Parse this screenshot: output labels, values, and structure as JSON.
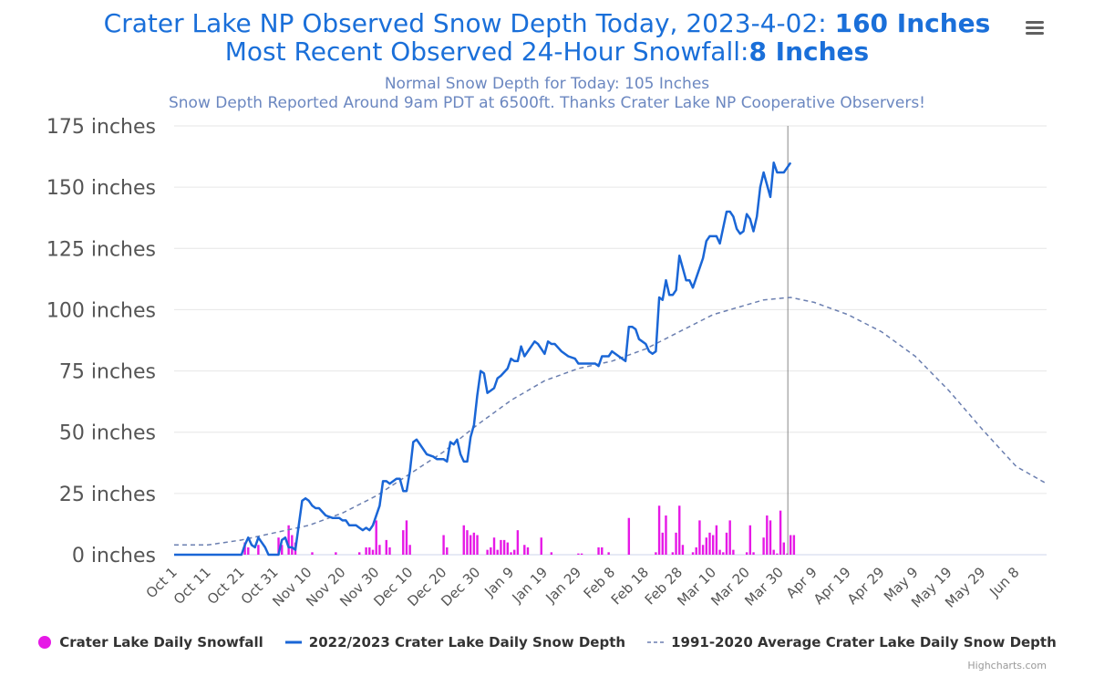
{
  "header": {
    "title_line1_prefix": "Crater Lake NP Observed Snow Depth Today, 2023-4-02: ",
    "title_line1_value": "160 Inches",
    "title_line2_prefix": "Most Recent Observed 24-Hour Snowfall:",
    "title_line2_value": "8 Inches",
    "subtitle_line1": "Normal Snow Depth for Today: 105 Inches",
    "subtitle_line2": "Snow Depth Reported Around 9am PDT at 6500ft. Thanks Crater Lake NP Cooperative Observers!"
  },
  "menu": {
    "icon": "hamburger-menu-icon"
  },
  "credits": "Highcharts.com",
  "colors": {
    "title": "#1a6fd9",
    "subtitle": "#6b87c0",
    "snowfall": "#e619e6",
    "depth": "#1a66d6",
    "average": "#6b7fb0",
    "grid": "#e6e6e6",
    "today_line": "#888888"
  },
  "chart_data": {
    "type": "line",
    "title": "Crater Lake NP Observed Snow Depth Today, 2023-4-02: 160 Inches",
    "subtitle": "Normal Snow Depth for Today: 105 Inches",
    "xlabel": "",
    "ylabel": "",
    "x_unit": "days since Oct 1, 2022",
    "xlim": [
      0,
      259
    ],
    "ylim": [
      0,
      175
    ],
    "y_ticks": [
      0,
      25,
      50,
      75,
      100,
      125,
      150,
      175
    ],
    "y_tick_labels": [
      "0 inches",
      "25 inches",
      "50 inches",
      "75 inches",
      "100 inches",
      "125 inches",
      "150 inches",
      "175 inches"
    ],
    "x_ticks": [
      0,
      10,
      20,
      30,
      40,
      50,
      60,
      70,
      80,
      90,
      100,
      110,
      120,
      130,
      140,
      150,
      160,
      170,
      180,
      190,
      200,
      210,
      220,
      230,
      240,
      250
    ],
    "x_tick_labels": [
      "Oct 1",
      "Oct 11",
      "Oct 21",
      "Oct 31",
      "Nov 10",
      "Nov 20",
      "Nov 30",
      "Dec 10",
      "Dec 20",
      "Dec 30",
      "Jan 9",
      "Jan 19",
      "Jan 29",
      "Feb 8",
      "Feb 18",
      "Feb 28",
      "Mar 10",
      "Mar 20",
      "Mar 30",
      "Apr 9",
      "Apr 19",
      "Apr 29",
      "May 9",
      "May 19",
      "May 29",
      "Jun 8"
    ],
    "grid": true,
    "legend_position": "bottom-center",
    "today_marker_day": 183,
    "series": [
      {
        "name": "Crater Lake Daily Snowfall",
        "type": "bar",
        "points": [
          [
            21,
            5
          ],
          [
            22,
            3
          ],
          [
            25,
            4
          ],
          [
            31,
            7
          ],
          [
            32,
            4
          ],
          [
            34,
            12
          ],
          [
            35,
            8
          ],
          [
            36,
            5
          ],
          [
            41,
            1
          ],
          [
            48,
            1
          ],
          [
            55,
            1
          ],
          [
            57,
            3
          ],
          [
            58,
            3
          ],
          [
            59,
            2
          ],
          [
            60,
            14
          ],
          [
            61,
            4
          ],
          [
            63,
            6
          ],
          [
            64,
            3
          ],
          [
            68,
            10
          ],
          [
            69,
            14
          ],
          [
            70,
            4
          ],
          [
            80,
            8
          ],
          [
            81,
            3
          ],
          [
            86,
            12
          ],
          [
            87,
            10
          ],
          [
            88,
            8
          ],
          [
            89,
            9
          ],
          [
            90,
            8
          ],
          [
            93,
            2
          ],
          [
            94,
            3
          ],
          [
            95,
            7
          ],
          [
            96,
            2
          ],
          [
            97,
            6
          ],
          [
            98,
            6
          ],
          [
            99,
            5
          ],
          [
            100,
            1
          ],
          [
            101,
            2
          ],
          [
            102,
            10
          ],
          [
            104,
            4
          ],
          [
            105,
            3
          ],
          [
            109,
            7
          ],
          [
            112,
            1
          ],
          [
            120,
            0.5
          ],
          [
            121,
            0.5
          ],
          [
            126,
            3
          ],
          [
            127,
            3
          ],
          [
            129,
            1
          ],
          [
            135,
            15
          ],
          [
            143,
            1
          ],
          [
            144,
            20
          ],
          [
            145,
            9
          ],
          [
            146,
            16
          ],
          [
            148,
            1
          ],
          [
            149,
            9
          ],
          [
            150,
            20
          ],
          [
            151,
            4
          ],
          [
            154,
            1
          ],
          [
            155,
            3
          ],
          [
            156,
            14
          ],
          [
            157,
            4
          ],
          [
            158,
            7
          ],
          [
            159,
            9
          ],
          [
            160,
            8
          ],
          [
            161,
            12
          ],
          [
            162,
            2
          ],
          [
            163,
            1
          ],
          [
            164,
            9
          ],
          [
            165,
            14
          ],
          [
            166,
            2
          ],
          [
            170,
            1
          ],
          [
            171,
            12
          ],
          [
            172,
            1
          ],
          [
            175,
            7
          ],
          [
            176,
            16
          ],
          [
            177,
            14
          ],
          [
            178,
            2
          ],
          [
            179,
            0.5
          ],
          [
            180,
            18
          ],
          [
            181,
            5
          ],
          [
            182,
            0.5
          ],
          [
            183,
            8
          ],
          [
            184,
            8
          ]
        ]
      },
      {
        "name": "2022/2023 Crater Lake Daily Snow Depth",
        "type": "line",
        "points": [
          [
            0,
            0
          ],
          [
            20,
            0
          ],
          [
            21,
            4
          ],
          [
            22,
            7
          ],
          [
            23,
            4
          ],
          [
            24,
            3
          ],
          [
            25,
            7
          ],
          [
            26,
            5
          ],
          [
            27,
            3
          ],
          [
            28,
            0
          ],
          [
            31,
            0
          ],
          [
            32,
            6
          ],
          [
            33,
            7
          ],
          [
            34,
            3
          ],
          [
            35,
            3
          ],
          [
            36,
            2
          ],
          [
            37,
            12
          ],
          [
            38,
            22
          ],
          [
            39,
            23
          ],
          [
            40,
            22
          ],
          [
            41,
            20
          ],
          [
            42,
            19
          ],
          [
            43,
            19
          ],
          [
            45,
            16
          ],
          [
            47,
            15
          ],
          [
            49,
            15
          ],
          [
            50,
            14
          ],
          [
            51,
            14
          ],
          [
            52,
            12
          ],
          [
            54,
            12
          ],
          [
            55,
            11
          ],
          [
            56,
            10
          ],
          [
            57,
            11
          ],
          [
            58,
            10
          ],
          [
            59,
            12
          ],
          [
            61,
            20
          ],
          [
            62,
            30
          ],
          [
            63,
            30
          ],
          [
            64,
            29
          ],
          [
            66,
            31
          ],
          [
            67,
            31
          ],
          [
            68,
            26
          ],
          [
            69,
            26
          ],
          [
            70,
            34
          ],
          [
            71,
            46
          ],
          [
            72,
            47
          ],
          [
            73,
            45
          ],
          [
            75,
            41
          ],
          [
            77,
            40
          ],
          [
            78,
            39
          ],
          [
            80,
            39
          ],
          [
            81,
            38
          ],
          [
            82,
            46
          ],
          [
            83,
            45
          ],
          [
            84,
            47
          ],
          [
            85,
            41
          ],
          [
            86,
            38
          ],
          [
            87,
            38
          ],
          [
            88,
            48
          ],
          [
            89,
            53
          ],
          [
            90,
            65
          ],
          [
            91,
            75
          ],
          [
            92,
            74
          ],
          [
            93,
            66
          ],
          [
            94,
            67
          ],
          [
            95,
            68
          ],
          [
            96,
            72
          ],
          [
            97,
            73
          ],
          [
            99,
            76
          ],
          [
            100,
            80
          ],
          [
            101,
            79
          ],
          [
            102,
            79
          ],
          [
            103,
            85
          ],
          [
            104,
            81
          ],
          [
            106,
            85
          ],
          [
            107,
            87
          ],
          [
            108,
            86
          ],
          [
            109,
            84
          ],
          [
            110,
            82
          ],
          [
            111,
            87
          ],
          [
            112,
            86
          ],
          [
            113,
            86
          ],
          [
            115,
            83
          ],
          [
            117,
            81
          ],
          [
            119,
            80
          ],
          [
            120,
            78
          ],
          [
            122,
            78
          ],
          [
            125,
            78
          ],
          [
            126,
            77
          ],
          [
            127,
            81
          ],
          [
            129,
            81
          ],
          [
            130,
            83
          ],
          [
            132,
            81
          ],
          [
            133,
            80
          ],
          [
            134,
            79
          ],
          [
            135,
            93
          ],
          [
            136,
            93
          ],
          [
            137,
            92
          ],
          [
            138,
            88
          ],
          [
            139,
            87
          ],
          [
            140,
            86
          ],
          [
            141,
            83
          ],
          [
            142,
            82
          ],
          [
            143,
            83
          ],
          [
            144,
            105
          ],
          [
            145,
            104
          ],
          [
            146,
            112
          ],
          [
            147,
            106
          ],
          [
            148,
            106
          ],
          [
            149,
            108
          ],
          [
            150,
            122
          ],
          [
            152,
            112
          ],
          [
            153,
            112
          ],
          [
            154,
            109
          ],
          [
            156,
            117
          ],
          [
            157,
            121
          ],
          [
            158,
            128
          ],
          [
            159,
            130
          ],
          [
            161,
            130
          ],
          [
            162,
            127
          ],
          [
            164,
            140
          ],
          [
            165,
            140
          ],
          [
            166,
            138
          ],
          [
            167,
            133
          ],
          [
            168,
            131
          ],
          [
            169,
            132
          ],
          [
            170,
            139
          ],
          [
            171,
            137
          ],
          [
            172,
            132
          ],
          [
            173,
            138
          ],
          [
            174,
            150
          ],
          [
            175,
            156
          ],
          [
            176,
            151
          ],
          [
            177,
            146
          ],
          [
            178,
            160
          ],
          [
            179,
            156
          ],
          [
            181,
            156
          ],
          [
            182,
            158
          ],
          [
            183,
            160
          ]
        ]
      },
      {
        "name": "1991-2020 Average Crater Lake Daily Snow Depth",
        "type": "line",
        "style": "dashed",
        "points": [
          [
            0,
            4
          ],
          [
            10,
            4
          ],
          [
            20,
            6
          ],
          [
            30,
            9
          ],
          [
            40,
            12
          ],
          [
            50,
            17
          ],
          [
            60,
            24
          ],
          [
            70,
            33
          ],
          [
            80,
            42
          ],
          [
            90,
            53
          ],
          [
            100,
            63
          ],
          [
            110,
            71
          ],
          [
            120,
            76
          ],
          [
            130,
            79
          ],
          [
            140,
            84
          ],
          [
            150,
            91
          ],
          [
            160,
            98
          ],
          [
            170,
            102
          ],
          [
            175,
            104
          ],
          [
            183,
            105
          ],
          [
            190,
            103
          ],
          [
            200,
            98
          ],
          [
            210,
            91
          ],
          [
            220,
            81
          ],
          [
            230,
            67
          ],
          [
            240,
            51
          ],
          [
            250,
            36
          ],
          [
            259,
            29
          ]
        ]
      }
    ]
  }
}
